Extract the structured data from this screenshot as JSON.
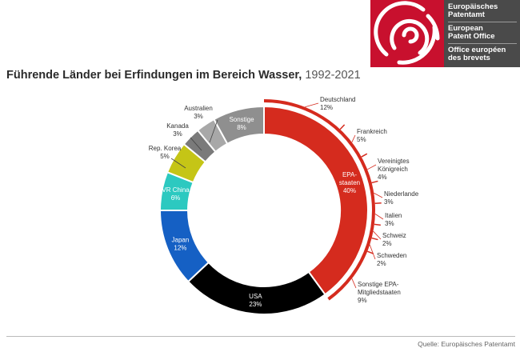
{
  "logo": {
    "line1": "Europäisches",
    "line2": "Patentamt",
    "line3": "European",
    "line4": "Patent Office",
    "line5": "Office européen",
    "line6": "des brevets",
    "brand_color": "#c8102e"
  },
  "chart_data": {
    "type": "pie",
    "title": "Führende Länder bei Erfindungen im Bereich Wasser,",
    "title_years": "1992-2021",
    "source": "Quelle: Europäisches Patentamt",
    "center_hole": true,
    "slices": [
      {
        "name": "EPA-staaten",
        "display_lines": [
          "EPA-",
          "staaten"
        ],
        "pct_label": "40%",
        "value": 40,
        "color": "#d52b1e"
      },
      {
        "name": "USA",
        "display_lines": [
          "USA"
        ],
        "pct_label": "23%",
        "value": 23,
        "color": "#000000"
      },
      {
        "name": "Japan",
        "display_lines": [
          "Japan"
        ],
        "pct_label": "12%",
        "value": 12,
        "color": "#1560c4"
      },
      {
        "name": "VR China",
        "display_lines": [
          "VR China"
        ],
        "pct_label": "6%",
        "value": 6,
        "color": "#2cc9c0"
      },
      {
        "name": "Rep. Korea",
        "display_lines": [
          "Rep. Korea"
        ],
        "pct_label": "5%",
        "value": 5,
        "color": "#c5c516"
      },
      {
        "name": "Kanada",
        "display_lines": [
          "Kanada"
        ],
        "pct_label": "3%",
        "value": 3,
        "color": "#7a7a7a"
      },
      {
        "name": "Australien",
        "display_lines": [
          "Australien"
        ],
        "pct_label": "3%",
        "value": 3,
        "color": "#a8a8a8"
      },
      {
        "name": "Sonstige",
        "display_lines": [
          "Sonstige"
        ],
        "pct_label": "8%",
        "value": 8,
        "color": "#8f8f8f"
      }
    ],
    "epo_breakdown_title": "EPA-staaten",
    "epo_breakdown": [
      {
        "name": "Deutschland",
        "display_lines": [
          "Deutschland"
        ],
        "pct_label": "12%",
        "value": 12
      },
      {
        "name": "Frankreich",
        "display_lines": [
          "Frankreich"
        ],
        "pct_label": "5%",
        "value": 5
      },
      {
        "name": "Vereinigtes Königreich",
        "display_lines": [
          "Vereinigtes",
          "Königreich"
        ],
        "pct_label": "4%",
        "value": 4
      },
      {
        "name": "Niederlande",
        "display_lines": [
          "Niederlande"
        ],
        "pct_label": "3%",
        "value": 3
      },
      {
        "name": "Italien",
        "display_lines": [
          "Italien"
        ],
        "pct_label": "3%",
        "value": 3
      },
      {
        "name": "Schweiz",
        "display_lines": [
          "Schweiz"
        ],
        "pct_label": "2%",
        "value": 2
      },
      {
        "name": "Schweden",
        "display_lines": [
          "Schweden"
        ],
        "pct_label": "2%",
        "value": 2
      },
      {
        "name": "Sonstige EPA-Mitgliedstaaten",
        "display_lines": [
          "Sonstige EPA-",
          "Mitgliedstaaten"
        ],
        "pct_label": "9%",
        "value": 9
      }
    ]
  }
}
